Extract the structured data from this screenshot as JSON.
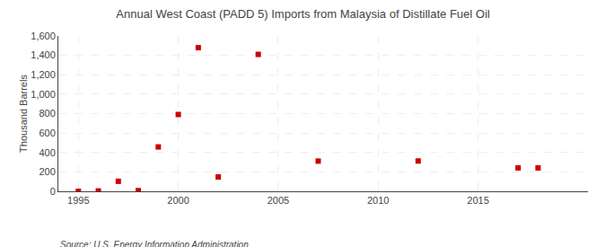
{
  "chart_data": {
    "type": "scatter",
    "title": "Annual West Coast (PADD 5) Imports from Malaysia of Distillate Fuel Oil",
    "ylabel": "Thousand Barrels",
    "annotation": "Source: U.S. Energy Information Administration",
    "x": [
      1995,
      1996,
      1997,
      1998,
      1999,
      2000,
      2001,
      2002,
      2004,
      2007,
      2012,
      2017,
      2018
    ],
    "values": [
      0,
      4,
      103,
      7,
      457,
      791,
      1479,
      148,
      1410,
      311,
      312,
      241,
      241
    ],
    "color": "#cc0000",
    "marker": "square",
    "xlim": [
      1994.0,
      2020.5
    ],
    "ylim": [
      0,
      1600
    ],
    "xticks": [
      1995,
      2000,
      2005,
      2010,
      2015
    ],
    "yticks": [
      0,
      200,
      400,
      600,
      800,
      {
        "value": 1000,
        "label": "1,000"
      },
      {
        "value": 1200,
        "label": "1,200"
      },
      {
        "value": 1400,
        "label": "1,400"
      },
      {
        "value": 1600,
        "label": "1,600"
      }
    ],
    "grid": true
  }
}
